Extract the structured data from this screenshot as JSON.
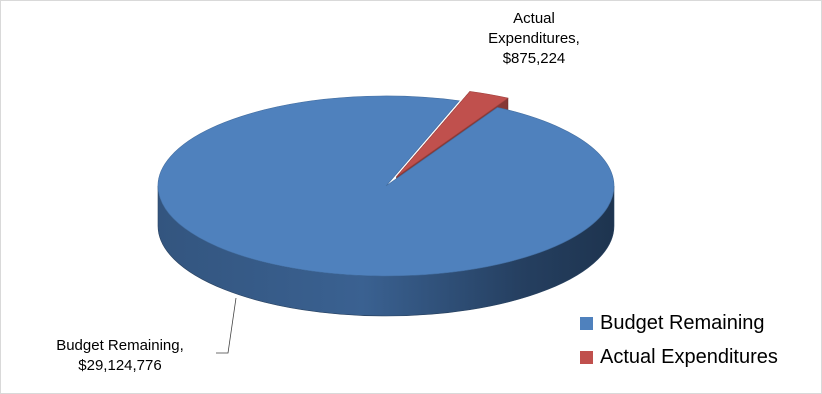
{
  "chart_data": {
    "type": "pie",
    "style": "3d",
    "series": [
      {
        "name": "",
        "categories": [
          "Budget Remaining",
          "Actual Expenditures"
        ],
        "values": [
          29124776,
          875224
        ],
        "colors": [
          "#4F81BD",
          "#C0504D"
        ],
        "exploded": [
          false,
          true
        ]
      }
    ],
    "data_labels": [
      {
        "lines": [
          "Budget Remaining,",
          "$29,124,776"
        ]
      },
      {
        "lines": [
          "Actual",
          "Expenditures,",
          "$875,224"
        ]
      }
    ],
    "legend": {
      "position": "bottom-right",
      "entries": [
        "Budget Remaining",
        "Actual Expenditures"
      ]
    }
  }
}
